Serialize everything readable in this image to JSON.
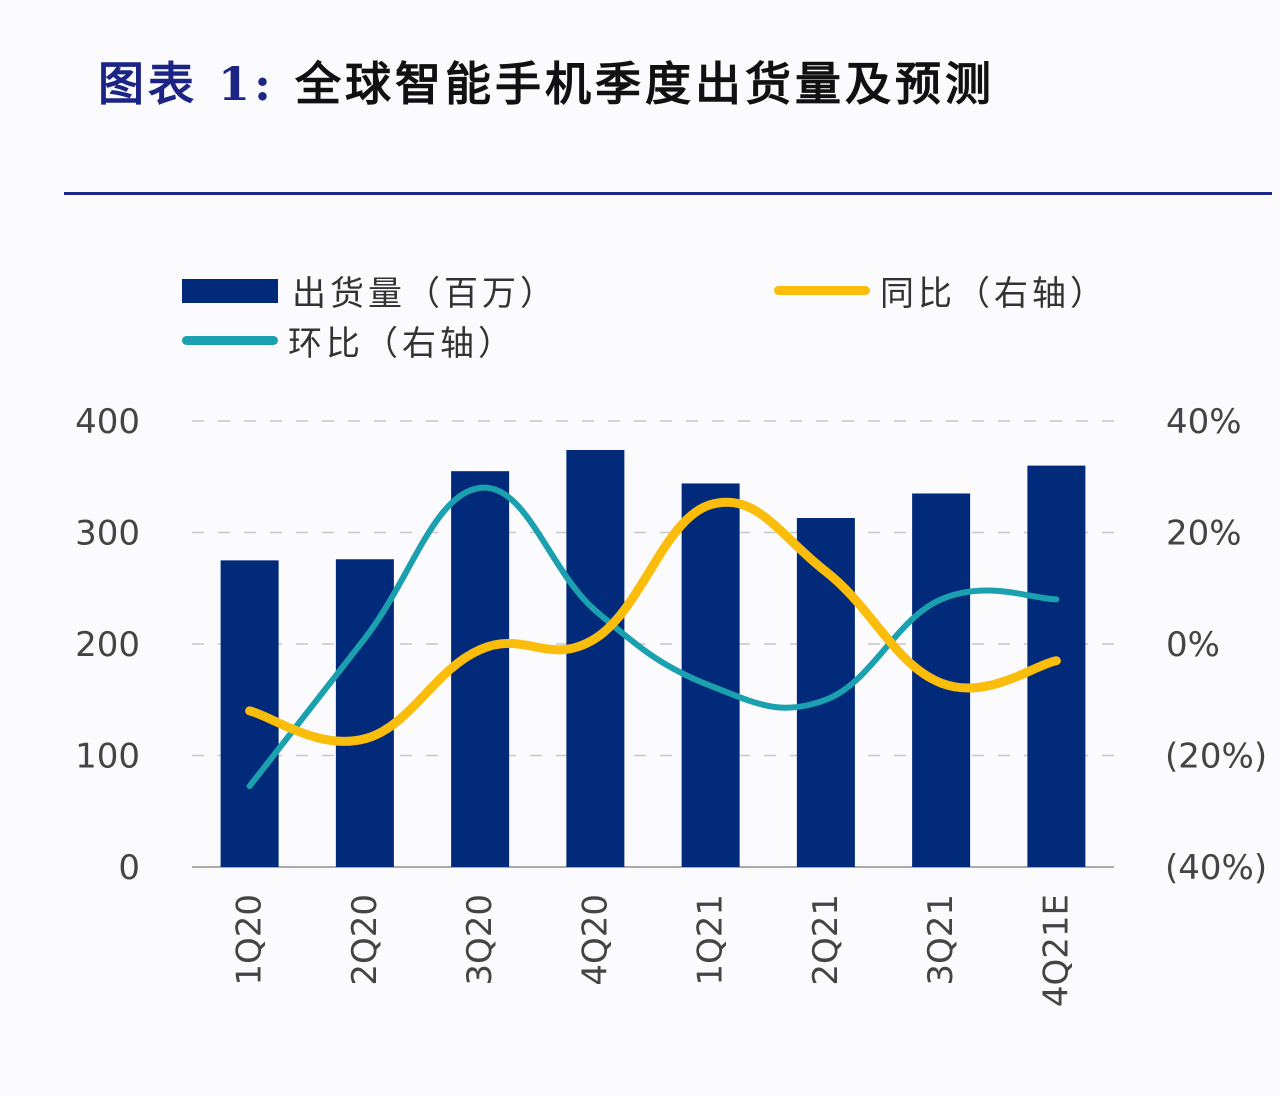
{
  "header": {
    "title_prefix": "图表 1:",
    "title_main": "全球智能手机季度出货量及预测"
  },
  "colors": {
    "bar": "#022a7a",
    "yoy_line": "#fbbd0b",
    "qoq_line": "#1aa0ae",
    "divider": "#1d2589",
    "grid": "#c8c8c8",
    "axis": "#aaaaaa",
    "tick_text": "#444444"
  },
  "legend": {
    "shipments": "出货量（百万）",
    "yoy": "同比（右轴）",
    "qoq": "环比（右轴）"
  },
  "chart_data": {
    "type": "bar",
    "title": "全球智能手机季度出货量及预测",
    "categories": [
      "1Q20",
      "2Q20",
      "3Q20",
      "4Q20",
      "1Q21",
      "2Q21",
      "3Q21",
      "4Q21E"
    ],
    "series": [
      {
        "name": "出货量（百万）",
        "type": "bar",
        "axis": "left",
        "values": [
          275,
          276,
          355,
          374,
          344,
          313,
          335,
          360
        ]
      },
      {
        "name": "同比（右轴）",
        "type": "line",
        "axis": "right",
        "smooth": true,
        "values": [
          -12,
          -17,
          -1,
          1,
          25,
          13,
          -7,
          -3
        ]
      },
      {
        "name": "环比（右轴）",
        "type": "line",
        "axis": "right",
        "smooth": true,
        "values": [
          -25.5,
          1,
          28,
          6,
          -7.5,
          -10,
          8,
          8
        ]
      }
    ],
    "left_axis": {
      "ylim": [
        0,
        400
      ],
      "ticks": [
        0,
        100,
        200,
        300,
        400
      ],
      "tick_labels": [
        "0",
        "100",
        "200",
        "300",
        "400"
      ]
    },
    "right_axis": {
      "ylim": [
        -40,
        40
      ],
      "ticks": [
        -40,
        -20,
        0,
        20,
        40
      ],
      "tick_labels": [
        "(40%)",
        "(20%)",
        "0%",
        "20%",
        "40%"
      ]
    },
    "xlabel": "",
    "ylabel": "",
    "grid": true,
    "legend_position": "top"
  }
}
